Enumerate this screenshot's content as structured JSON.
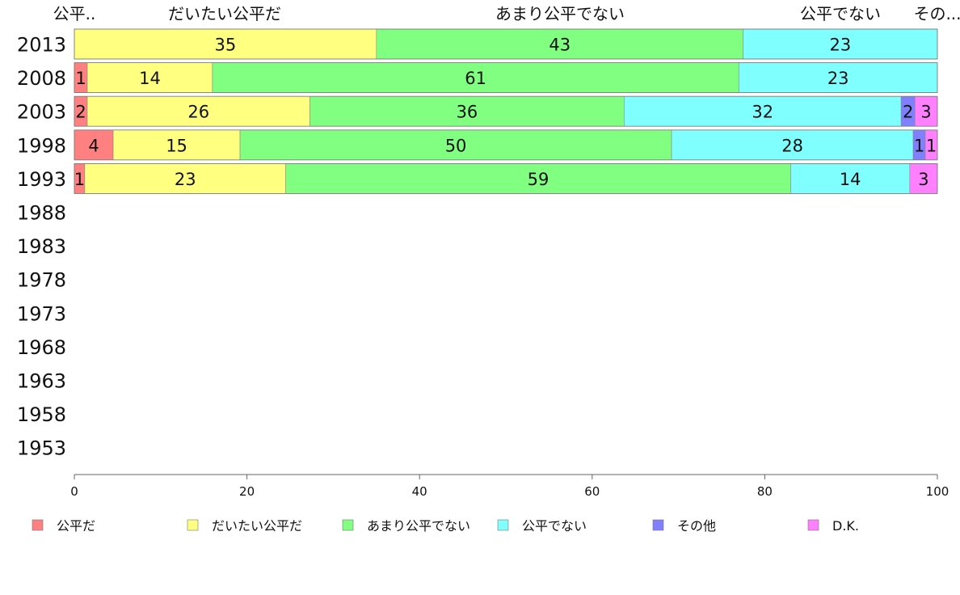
{
  "chart_data": {
    "type": "bar",
    "orientation": "horizontal",
    "stacked": true,
    "categories": [
      "2013",
      "2008",
      "2003",
      "1998",
      "1993",
      "1988",
      "1983",
      "1978",
      "1973",
      "1968",
      "1963",
      "1958",
      "1953"
    ],
    "series": [
      {
        "name": "公平だ",
        "color": "#ff8080",
        "values": [
          0,
          1.5,
          1.5,
          4.5,
          1.2,
          null,
          null,
          null,
          null,
          null,
          null,
          null,
          null
        ],
        "labels": [
          "",
          "1",
          "2",
          "4",
          "1",
          "",
          "",
          "",
          "",
          "",
          "",
          "",
          ""
        ]
      },
      {
        "name": "だいたい公平だ",
        "color": "#ffff80",
        "values": [
          35,
          14.5,
          25.8,
          14.7,
          23.3,
          null,
          null,
          null,
          null,
          null,
          null,
          null,
          null
        ],
        "labels": [
          "35",
          "14",
          "26",
          "15",
          "23",
          "",
          "",
          "",
          "",
          "",
          "",
          "",
          ""
        ]
      },
      {
        "name": "あまり公平でない",
        "color": "#80ff80",
        "values": [
          42.5,
          61,
          36.4,
          50,
          58.5,
          null,
          null,
          null,
          null,
          null,
          null,
          null,
          null
        ],
        "labels": [
          "43",
          "61",
          "36",
          "50",
          "59",
          "",
          "",
          "",
          "",
          "",
          "",
          "",
          ""
        ]
      },
      {
        "name": "公平でない",
        "color": "#80ffff",
        "values": [
          22.5,
          23,
          32.1,
          28,
          13.8,
          null,
          null,
          null,
          null,
          null,
          null,
          null,
          null
        ],
        "labels": [
          "23",
          "23",
          "32",
          "28",
          "14",
          "",
          "",
          "",
          "",
          "",
          "",
          "",
          ""
        ]
      },
      {
        "name": "その他",
        "color": "#8080ff",
        "values": [
          0,
          0,
          1.6,
          1.4,
          0,
          null,
          null,
          null,
          null,
          null,
          null,
          null,
          null
        ],
        "labels": [
          "",
          "",
          "2",
          "1",
          "",
          "",
          "",
          "",
          "",
          "",
          "",
          "",
          ""
        ]
      },
      {
        "name": "D.K.",
        "color": "#ff80ff",
        "values": [
          0,
          0,
          2.6,
          1.4,
          3.2,
          null,
          null,
          null,
          null,
          null,
          null,
          null,
          null
        ],
        "labels": [
          "",
          "",
          "3",
          "1",
          "3",
          "",
          "",
          "",
          "",
          "",
          "",
          "",
          ""
        ]
      }
    ],
    "segment_headers": [
      "公平..",
      "だいたい公平だ",
      "あまり公平でない",
      "公平でない",
      "その..."
    ],
    "xlim": [
      0,
      100
    ],
    "xticks": [
      "0",
      "20",
      "40",
      "60",
      "80",
      "100"
    ],
    "legend_position": "bottom",
    "grid": false
  }
}
